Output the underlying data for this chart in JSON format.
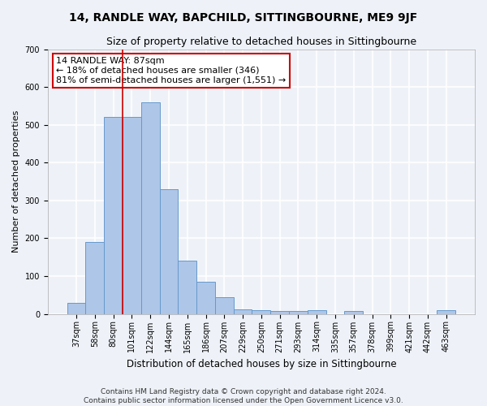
{
  "title": "14, RANDLE WAY, BAPCHILD, SITTINGBOURNE, ME9 9JF",
  "subtitle": "Size of property relative to detached houses in Sittingbourne",
  "xlabel": "Distribution of detached houses by size in Sittingbourne",
  "ylabel": "Number of detached properties",
  "footer": "Contains HM Land Registry data © Crown copyright and database right 2024.\nContains public sector information licensed under the Open Government Licence v3.0.",
  "categories": [
    "37sqm",
    "58sqm",
    "80sqm",
    "101sqm",
    "122sqm",
    "144sqm",
    "165sqm",
    "186sqm",
    "207sqm",
    "229sqm",
    "250sqm",
    "271sqm",
    "293sqm",
    "314sqm",
    "335sqm",
    "357sqm",
    "378sqm",
    "399sqm",
    "421sqm",
    "442sqm",
    "463sqm"
  ],
  "values": [
    30,
    190,
    520,
    520,
    560,
    330,
    140,
    85,
    45,
    13,
    10,
    8,
    8,
    10,
    0,
    7,
    0,
    0,
    0,
    0,
    10
  ],
  "bar_color": "#aec6e8",
  "bar_edge_color": "#6699cc",
  "vline_color": "#cc0000",
  "vline_x": 2.5,
  "annotation_text": "14 RANDLE WAY: 87sqm\n← 18% of detached houses are smaller (346)\n81% of semi-detached houses are larger (1,551) →",
  "annotation_box_color": "#ffffff",
  "annotation_box_edge": "#cc0000",
  "ylim": [
    0,
    700
  ],
  "yticks": [
    0,
    100,
    200,
    300,
    400,
    500,
    600,
    700
  ],
  "background_color": "#eef2f8",
  "plot_bg_color": "#eef2f8",
  "grid_color": "#ffffff",
  "title_fontsize": 10,
  "subtitle_fontsize": 9,
  "xlabel_fontsize": 8.5,
  "ylabel_fontsize": 8,
  "tick_fontsize": 7,
  "footer_fontsize": 6.5,
  "annotation_fontsize": 8
}
